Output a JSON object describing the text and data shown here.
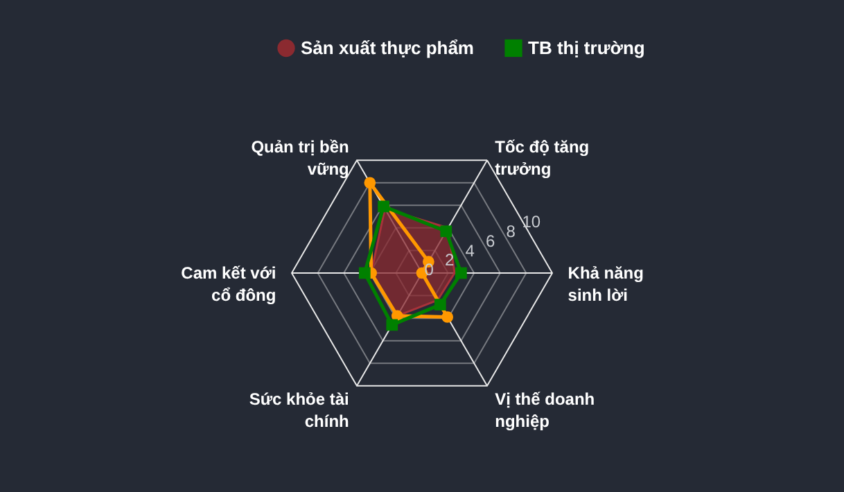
{
  "chart_data": {
    "type": "radar",
    "categories": [
      "Tốc độ tăng trưởng",
      "Khả năng sinh lời",
      "Vị thế doanh nghiệp",
      "Sức khỏe tài chính",
      "Cam kết với cổ đông",
      "Quản trị bền vững"
    ],
    "series": [
      {
        "color": "#ff9800",
        "marker": "circle",
        "values": [
          1.0,
          0.0,
          3.9,
          3.8,
          3.9,
          8.0
        ]
      },
      {
        "name": "Sản xuất thực phẩm",
        "type": "area",
        "color": "#8b2a30",
        "marker": "none",
        "values": [
          4.0,
          2.5,
          2.4,
          3.8,
          3.9,
          5.7
        ]
      },
      {
        "name": "TB thị trường",
        "color": "#008000",
        "marker": "square",
        "values": [
          3.7,
          3.0,
          2.8,
          4.6,
          4.4,
          5.9
        ]
      }
    ],
    "ylim": [
      0,
      10
    ],
    "yticks": [
      0,
      2,
      4,
      6,
      8,
      10
    ],
    "legend": "top",
    "grid": true
  }
}
